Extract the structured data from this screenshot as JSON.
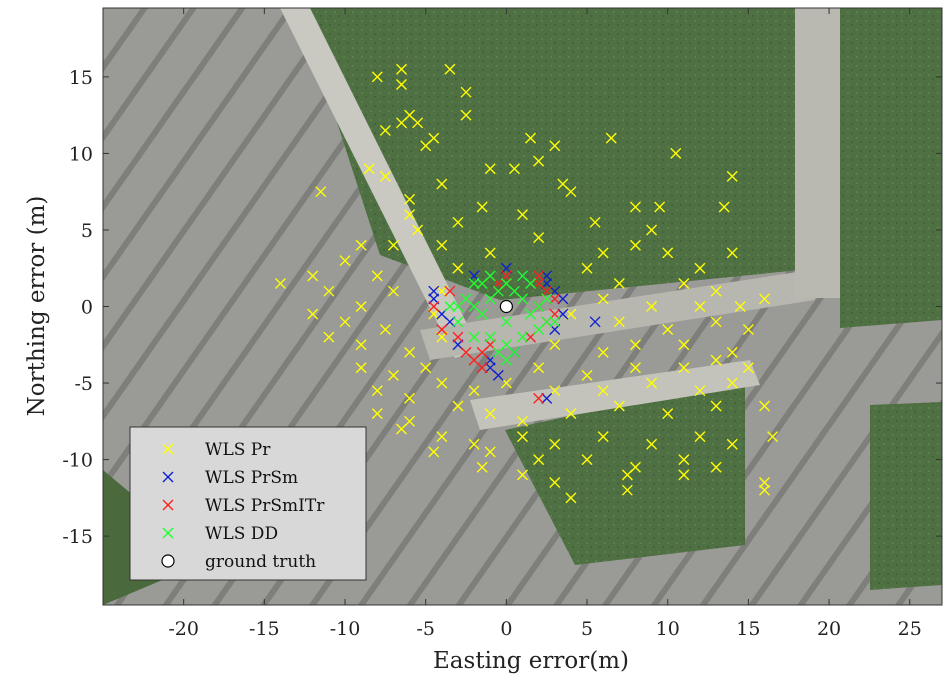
{
  "chart_data": {
    "type": "scatter",
    "xlabel": "Easting error(m)",
    "ylabel": "Northing error (m)",
    "xlim": [
      -25,
      27
    ],
    "ylim": [
      -19.5,
      19.5
    ],
    "xticks": [
      -20,
      -15,
      -10,
      -5,
      0,
      5,
      10,
      15,
      20,
      25
    ],
    "yticks": [
      -15,
      -10,
      -5,
      0,
      5,
      10,
      15
    ],
    "background": "aerial-photo",
    "legend_position": "bottom-left",
    "series": [
      {
        "name": "WLS Pr",
        "marker": "x",
        "color": "#ffff00",
        "points": [
          [
            -8,
            15
          ],
          [
            -6.5,
            15.5
          ],
          [
            -6.5,
            14.5
          ],
          [
            -3.5,
            15.5
          ],
          [
            -2.5,
            14
          ],
          [
            -6,
            12.5
          ],
          [
            -6.5,
            12
          ],
          [
            -5.5,
            12
          ],
          [
            -7.5,
            11.5
          ],
          [
            -4.5,
            11
          ],
          [
            -2.5,
            12.5
          ],
          [
            -5,
            10.5
          ],
          [
            1.5,
            11
          ],
          [
            3,
            10.5
          ],
          [
            6.5,
            11
          ],
          [
            10.5,
            10
          ],
          [
            -1,
            9
          ],
          [
            0.5,
            9
          ],
          [
            2,
            9.5
          ],
          [
            3.5,
            8
          ],
          [
            -8.5,
            9
          ],
          [
            -7.5,
            8.5
          ],
          [
            -4,
            8
          ],
          [
            -6,
            7
          ],
          [
            -11.5,
            7.5
          ],
          [
            -1.5,
            6.5
          ],
          [
            4,
            7.5
          ],
          [
            8,
            6.5
          ],
          [
            9.5,
            6.5
          ],
          [
            13.5,
            6.5
          ],
          [
            14,
            8.5
          ],
          [
            -6,
            6
          ],
          [
            -5.5,
            5
          ],
          [
            -3,
            5.5
          ],
          [
            1,
            6
          ],
          [
            5.5,
            5.5
          ],
          [
            9,
            5
          ],
          [
            -9,
            4
          ],
          [
            -7,
            4
          ],
          [
            -4,
            4
          ],
          [
            -1,
            3.5
          ],
          [
            2,
            4.5
          ],
          [
            6,
            3.5
          ],
          [
            8,
            4
          ],
          [
            10,
            3.5
          ],
          [
            12,
            2.5
          ],
          [
            14,
            3.5
          ],
          [
            -10,
            3
          ],
          [
            -12,
            2
          ],
          [
            -8,
            2
          ],
          [
            -3,
            2.5
          ],
          [
            5,
            2.5
          ],
          [
            7,
            1.5
          ],
          [
            11,
            1.5
          ],
          [
            13,
            1
          ],
          [
            -14,
            1.5
          ],
          [
            -11,
            1
          ],
          [
            -9,
            0
          ],
          [
            -7,
            1
          ],
          [
            -4,
            1
          ],
          [
            6,
            0.5
          ],
          [
            9,
            0
          ],
          [
            12,
            0
          ],
          [
            14.5,
            0
          ],
          [
            16,
            0.5
          ],
          [
            -12,
            -0.5
          ],
          [
            -10,
            -1
          ],
          [
            -7.5,
            -1.5
          ],
          [
            -4.5,
            -0.5
          ],
          [
            4,
            -0.5
          ],
          [
            7,
            -1
          ],
          [
            10,
            -1.5
          ],
          [
            13,
            -1
          ],
          [
            15,
            -1.5
          ],
          [
            -11,
            -2
          ],
          [
            -9,
            -2.5
          ],
          [
            -6,
            -3
          ],
          [
            -4,
            -2
          ],
          [
            3,
            -2.5
          ],
          [
            6,
            -3
          ],
          [
            8,
            -2.5
          ],
          [
            11,
            -2.5
          ],
          [
            14,
            -3
          ],
          [
            -9,
            -4
          ],
          [
            -7,
            -4.5
          ],
          [
            -5,
            -4
          ],
          [
            -1,
            -4
          ],
          [
            2,
            -4
          ],
          [
            5,
            -4.5
          ],
          [
            8,
            -4
          ],
          [
            11,
            -4
          ],
          [
            13,
            -3.5
          ],
          [
            15,
            -4
          ],
          [
            -8,
            -5.5
          ],
          [
            -6,
            -6
          ],
          [
            -4,
            -5
          ],
          [
            -2,
            -5.5
          ],
          [
            0,
            -5
          ],
          [
            3,
            -5.5
          ],
          [
            6,
            -5.5
          ],
          [
            9,
            -5
          ],
          [
            12,
            -5.5
          ],
          [
            14,
            -5
          ],
          [
            -8,
            -7
          ],
          [
            -6,
            -7.5
          ],
          [
            -3,
            -6.5
          ],
          [
            -1,
            -7
          ],
          [
            1,
            -7.5
          ],
          [
            4,
            -7
          ],
          [
            7,
            -6.5
          ],
          [
            10,
            -7
          ],
          [
            13,
            -6.5
          ],
          [
            16,
            -6.5
          ],
          [
            -6.5,
            -8
          ],
          [
            -4,
            -8.5
          ],
          [
            -2,
            -9
          ],
          [
            1,
            -8.5
          ],
          [
            3,
            -9
          ],
          [
            6,
            -8.5
          ],
          [
            9,
            -9
          ],
          [
            12,
            -8.5
          ],
          [
            14,
            -9
          ],
          [
            16.5,
            -8.5
          ],
          [
            -4.5,
            -9.5
          ],
          [
            -1,
            -9.5
          ],
          [
            2,
            -10
          ],
          [
            5,
            -10
          ],
          [
            8,
            -10.5
          ],
          [
            11,
            -10
          ],
          [
            13,
            -10.5
          ],
          [
            -1.5,
            -10.5
          ],
          [
            1,
            -11
          ],
          [
            3,
            -11.5
          ],
          [
            7.5,
            -11
          ],
          [
            11,
            -11
          ],
          [
            16,
            -11.5
          ],
          [
            4,
            -12.5
          ],
          [
            7.5,
            -12
          ],
          [
            16,
            -12
          ]
        ]
      },
      {
        "name": "WLS PrSm",
        "marker": "x",
        "color": "#1020d0",
        "points": [
          [
            -4.5,
            1
          ],
          [
            -4.5,
            0.5
          ],
          [
            -4,
            -0.5
          ],
          [
            -3.5,
            -1
          ],
          [
            -1,
            -3.5
          ],
          [
            -0.5,
            -4.5
          ],
          [
            0,
            2.5
          ],
          [
            1,
            2
          ],
          [
            2.5,
            2
          ],
          [
            2.5,
            1.5
          ],
          [
            3,
            1
          ],
          [
            3.5,
            0.5
          ],
          [
            3.5,
            -0.5
          ],
          [
            3,
            -1.5
          ],
          [
            -2,
            2
          ],
          [
            2.5,
            -6
          ],
          [
            5.5,
            -1
          ],
          [
            -1,
            -4
          ],
          [
            0.5,
            -3
          ],
          [
            -3,
            -2.5
          ]
        ]
      },
      {
        "name": "WLS PrSmITr",
        "marker": "x",
        "color": "#ff2020",
        "points": [
          [
            2,
            -6
          ],
          [
            -2,
            -3.5
          ],
          [
            -1.5,
            -4
          ],
          [
            -1,
            -2.5
          ],
          [
            -3,
            -2
          ],
          [
            -4,
            -1.5
          ],
          [
            -4.5,
            0
          ],
          [
            2,
            1.5
          ],
          [
            2.5,
            1
          ],
          [
            3,
            0.5
          ],
          [
            3,
            -0.5
          ],
          [
            2.5,
            -1
          ],
          [
            2,
            0
          ],
          [
            -0.5,
            1.5
          ],
          [
            0,
            2
          ],
          [
            -3.5,
            1
          ],
          [
            1.5,
            -2
          ],
          [
            -2.5,
            -3
          ],
          [
            -1.5,
            -3
          ],
          [
            2,
            2
          ]
        ]
      },
      {
        "name": "WLS DD",
        "marker": "x",
        "color": "#20ff30",
        "points": [
          [
            0,
            0
          ],
          [
            -1,
            0.5
          ],
          [
            1,
            0.5
          ],
          [
            -1.5,
            -0.5
          ],
          [
            1.5,
            -0.5
          ],
          [
            0.5,
            1
          ],
          [
            -0.5,
            1
          ],
          [
            0,
            -1
          ],
          [
            -2,
            0
          ],
          [
            2,
            0
          ],
          [
            -2.5,
            0.5
          ],
          [
            2.5,
            0.5
          ],
          [
            -1,
            -2
          ],
          [
            1,
            -2
          ],
          [
            0,
            -2.5
          ],
          [
            0,
            1.5
          ],
          [
            -1.5,
            1.5
          ],
          [
            1.5,
            1.5
          ],
          [
            -3,
            0
          ],
          [
            -3,
            -1
          ],
          [
            2.5,
            -1
          ],
          [
            -2,
            -2
          ],
          [
            2,
            -1.5
          ],
          [
            -0.5,
            -3
          ],
          [
            0.5,
            -3
          ],
          [
            -2,
            1.5
          ],
          [
            1,
            2
          ],
          [
            -1,
            2
          ],
          [
            0,
            -3.5
          ],
          [
            -3.5,
            0
          ],
          [
            3,
            -1
          ]
        ]
      },
      {
        "name": "ground truth",
        "marker": "o",
        "color": "#ffffff",
        "points": [
          [
            0,
            0
          ]
        ]
      }
    ]
  }
}
